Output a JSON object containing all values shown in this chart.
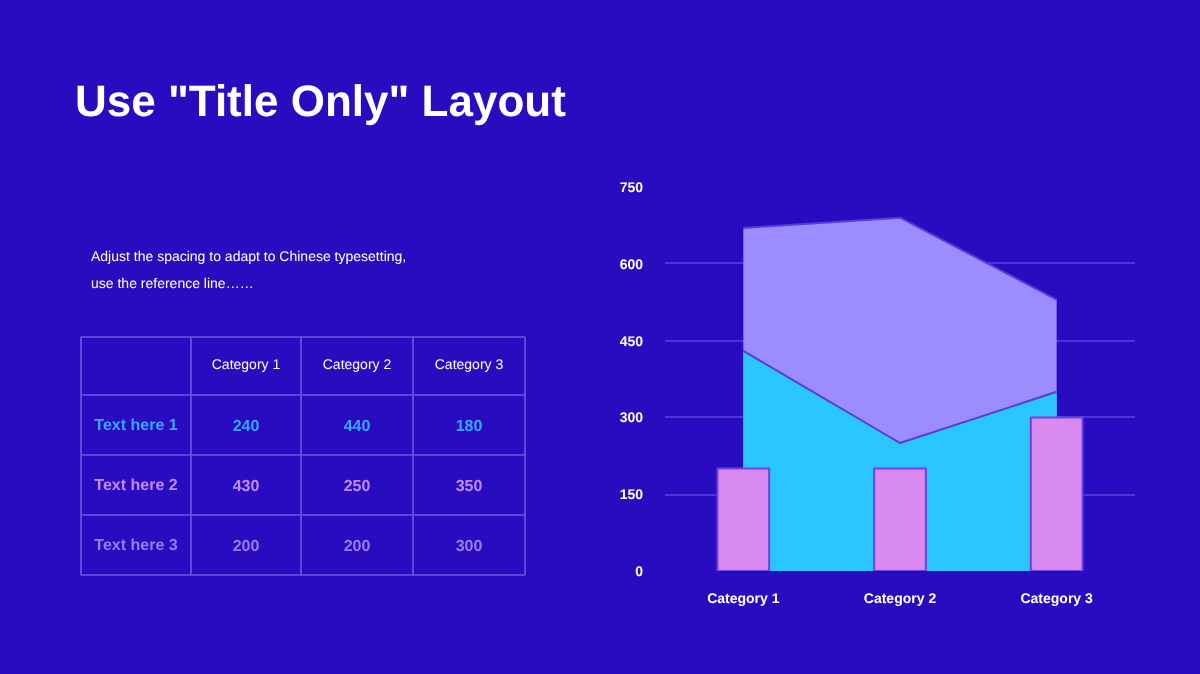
{
  "chart_data": [
    {
      "type": "heatmap",
      "title": "Use \"Title Only\" Layout",
      "annotations": [
        "Adjust the spacing to adapt to Chinese typesetting,\nuse the reference line……"
      ],
      "categories": [
        "Category 1",
        "Category 2",
        "Category 3"
      ],
      "y_categories": [
        "Text here 1",
        "Text here 2",
        "Text here 3"
      ],
      "cells": [
        [
          240,
          440,
          180
        ],
        [
          430,
          250,
          350
        ],
        [
          200,
          200,
          300
        ]
      ],
      "data_labels": true
    },
    {
      "type": "area",
      "categories": [
        "Category 1",
        "Category 2",
        "Category 3"
      ],
      "series": [
        {
          "color": "#9b8cff",
          "values": [
            670,
            690,
            530
          ]
        },
        {
          "color": "#29c6ff",
          "values": [
            430,
            250,
            350
          ]
        },
        {
          "type": "bar",
          "color": "#d98af0",
          "values": [
            200,
            200,
            300
          ]
        }
      ],
      "ylim": [
        0,
        750
      ],
      "yticks": [
        0,
        150,
        300,
        450,
        600,
        750
      ],
      "grid": "y"
    }
  ]
}
